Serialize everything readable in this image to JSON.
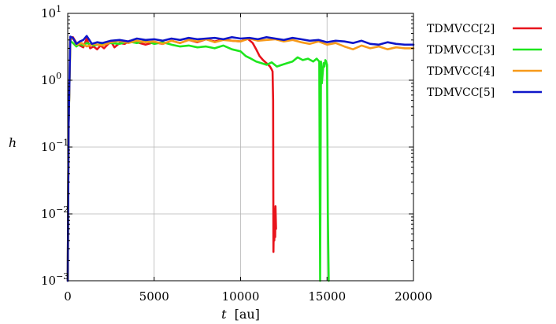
{
  "chart_data": {
    "type": "line",
    "xlabel": {
      "var": "t",
      "unit": "[au]"
    },
    "ylabel": "h",
    "xlim": [
      0,
      20000
    ],
    "ylim": [
      0.001,
      10
    ],
    "yscale": "log",
    "grid": true,
    "legend": "right-outside-top",
    "xticks": [
      0,
      5000,
      10000,
      15000,
      20000
    ],
    "xtick_labels": [
      "0",
      "5000",
      "10000",
      "15000",
      "20000"
    ],
    "yticks": [
      {
        "value": 0.001,
        "base": "10",
        "exp": "−3"
      },
      {
        "value": 0.01,
        "base": "10",
        "exp": "−2"
      },
      {
        "value": 0.1,
        "base": "10",
        "exp": "−1"
      },
      {
        "value": 1,
        "base": "10",
        "exp": "0"
      },
      {
        "value": 10,
        "base": "10",
        "exp": "1"
      }
    ],
    "series": [
      {
        "name": "TDMVCC[2]",
        "color": "#e8141c",
        "x": [
          0,
          50,
          150,
          300,
          500,
          700,
          900,
          1100,
          1300,
          1500,
          1700,
          1900,
          2100,
          2300,
          2500,
          2700,
          3000,
          3300,
          3600,
          4000,
          4500,
          5000,
          5500,
          6000,
          6500,
          7000,
          7500,
          8000,
          8500,
          9000,
          9500,
          10000,
          10400,
          10700,
          10900,
          11100,
          11300,
          11500,
          11700,
          11800,
          11850,
          11880,
          11900,
          11920,
          11950,
          11970,
          12000,
          12020,
          12050
        ],
        "y": [
          0.001,
          0.2,
          4.2,
          4.4,
          3.6,
          3.3,
          3.1,
          4.2,
          3.0,
          3.2,
          2.9,
          3.3,
          3.0,
          3.4,
          3.8,
          3.1,
          3.6,
          3.5,
          3.9,
          3.7,
          3.4,
          3.7,
          3.5,
          3.9,
          3.6,
          4.0,
          3.7,
          4.1,
          3.8,
          4.1,
          3.9,
          3.8,
          4.2,
          3.6,
          2.9,
          2.3,
          2.0,
          1.8,
          1.6,
          1.45,
          1.35,
          0.5,
          0.0027,
          0.006,
          0.004,
          0.012,
          0.0045,
          0.013,
          0.006
        ]
      },
      {
        "name": "TDMVCC[3]",
        "color": "#1ee61e",
        "x": [
          0,
          50,
          150,
          300,
          500,
          700,
          900,
          1100,
          1500,
          2000,
          2500,
          3000,
          3500,
          4000,
          4500,
          5000,
          5500,
          6000,
          6500,
          7000,
          7500,
          8000,
          8500,
          9000,
          9500,
          10000,
          10300,
          10600,
          10900,
          11200,
          11500,
          11800,
          12100,
          12400,
          12700,
          13000,
          13300,
          13600,
          13900,
          14200,
          14400,
          14550,
          14600,
          14650,
          14700,
          14750,
          14800,
          14850,
          14900,
          14950,
          15000,
          15050,
          15100
        ],
        "y": [
          0.001,
          0.2,
          3.9,
          3.6,
          3.2,
          3.5,
          3.3,
          3.6,
          3.3,
          3.5,
          3.6,
          3.5,
          3.8,
          3.6,
          3.9,
          3.5,
          3.7,
          3.4,
          3.2,
          3.3,
          3.1,
          3.2,
          3.0,
          3.3,
          2.9,
          2.7,
          2.3,
          2.1,
          1.9,
          1.8,
          1.7,
          1.85,
          1.6,
          1.7,
          1.8,
          1.9,
          2.2,
          2.0,
          2.1,
          1.9,
          2.1,
          1.9,
          0.001,
          1.9,
          0.9,
          1.3,
          1.8,
          1.6,
          2.0,
          1.9,
          1.7,
          0.01,
          0.001
        ]
      },
      {
        "name": "TDMVCC[4]",
        "color": "#f79a1a",
        "x": [
          0,
          50,
          150,
          300,
          500,
          800,
          1100,
          1500,
          2000,
          2500,
          3000,
          3500,
          4000,
          4500,
          5000,
          5500,
          6000,
          6500,
          7000,
          7500,
          8000,
          8500,
          9000,
          9500,
          10000,
          10500,
          11000,
          11500,
          12000,
          12500,
          13000,
          13500,
          14000,
          14500,
          15000,
          15500,
          16000,
          16500,
          17000,
          17500,
          18000,
          18500,
          19000,
          19500,
          20000
        ],
        "y": [
          0.001,
          0.2,
          4.0,
          4.3,
          3.4,
          3.6,
          3.2,
          3.5,
          3.3,
          3.7,
          3.9,
          3.6,
          3.9,
          3.7,
          3.8,
          3.5,
          3.9,
          3.6,
          4.0,
          3.8,
          4.1,
          3.7,
          4.0,
          3.9,
          3.8,
          4.2,
          3.9,
          4.0,
          4.1,
          3.8,
          4.0,
          3.7,
          3.5,
          3.8,
          3.4,
          3.6,
          3.2,
          2.9,
          3.3,
          3.0,
          3.2,
          2.9,
          3.1,
          3.0,
          3.0
        ]
      },
      {
        "name": "TDMVCC[5]",
        "color": "#0f16c9",
        "x": [
          0,
          50,
          150,
          300,
          500,
          700,
          900,
          1100,
          1400,
          1700,
          2000,
          2500,
          3000,
          3500,
          4000,
          4500,
          5000,
          5500,
          6000,
          6500,
          7000,
          7500,
          8000,
          8500,
          9000,
          9500,
          10000,
          10500,
          11000,
          11500,
          12000,
          12500,
          13000,
          13500,
          14000,
          14500,
          15000,
          15500,
          16000,
          16500,
          17000,
          17500,
          18000,
          18500,
          19000,
          19500,
          20000
        ],
        "y": [
          0.001,
          0.2,
          4.5,
          4.3,
          3.5,
          3.8,
          4.0,
          4.6,
          3.5,
          3.7,
          3.6,
          3.9,
          4.0,
          3.8,
          4.2,
          4.0,
          4.1,
          3.9,
          4.2,
          4.0,
          4.3,
          4.1,
          4.2,
          4.3,
          4.1,
          4.4,
          4.2,
          4.3,
          4.1,
          4.4,
          4.2,
          4.0,
          4.3,
          4.1,
          3.9,
          4.0,
          3.7,
          3.9,
          3.8,
          3.6,
          3.9,
          3.5,
          3.4,
          3.7,
          3.5,
          3.4,
          3.4
        ]
      }
    ]
  }
}
